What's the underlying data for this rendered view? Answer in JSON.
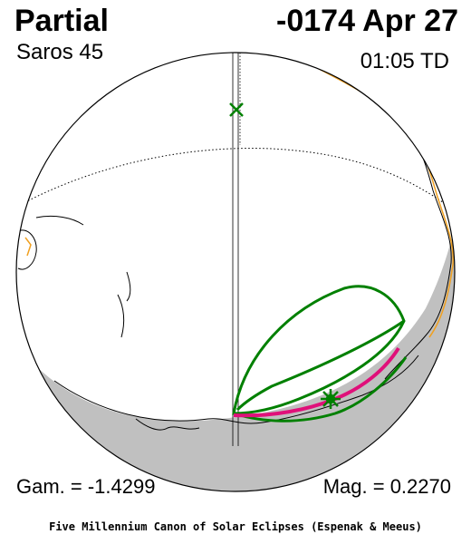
{
  "header": {
    "eclipse_type": "Partial",
    "date": "-0174 Apr 27",
    "saros": "Saros  45",
    "time": "01:05 TD"
  },
  "footer": {
    "gamma": "Gam. = -1.4299",
    "magnitude": "Mag. = 0.2270",
    "credit": "Five Millennium Canon of Solar Eclipses (Espenak & Meeus)"
  },
  "colors": {
    "night_shade": "#c0c0c0",
    "penumbra_limit": "#008000",
    "max_line": "#e0107a",
    "coastline": "#000000",
    "political_border": "#f0a020"
  },
  "markers": {
    "subsolar_point": "x-marker",
    "greatest_eclipse": "star-marker"
  }
}
